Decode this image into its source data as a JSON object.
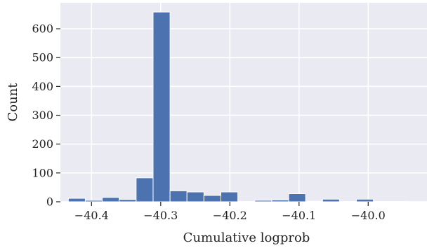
{
  "chart_data": {
    "type": "bar",
    "xlabel": "Cumulative logprob",
    "ylabel": "Count",
    "xlim": [
      -40.445,
      -39.915
    ],
    "ylim": [
      0,
      690
    ],
    "xticks": [
      -40.4,
      -40.3,
      -40.2,
      -40.1,
      -40.0
    ],
    "xtick_labels": [
      "−40.4",
      "−40.3",
      "−40.2",
      "−40.1",
      "−40.0"
    ],
    "yticks": [
      0,
      100,
      200,
      300,
      400,
      500,
      600
    ],
    "ytick_labels": [
      "0",
      "100",
      "200",
      "300",
      "400",
      "500",
      "600"
    ],
    "grid": true,
    "background": "#EAEAF2",
    "bar_color": "#4C72B0",
    "bin_width": 0.0245,
    "bins": [
      {
        "x0": -40.4335,
        "count": 12
      },
      {
        "x0": -40.409,
        "count": 5
      },
      {
        "x0": -40.3845,
        "count": 15
      },
      {
        "x0": -40.36,
        "count": 8
      },
      {
        "x0": -40.3355,
        "count": 83
      },
      {
        "x0": -40.311,
        "count": 658
      },
      {
        "x0": -40.2865,
        "count": 38
      },
      {
        "x0": -40.262,
        "count": 34
      },
      {
        "x0": -40.2375,
        "count": 22
      },
      {
        "x0": -40.213,
        "count": 34
      },
      {
        "x0": -40.1885,
        "count": 1
      },
      {
        "x0": -40.164,
        "count": 5
      },
      {
        "x0": -40.1395,
        "count": 6
      },
      {
        "x0": -40.115,
        "count": 28
      },
      {
        "x0": -40.0905,
        "count": 2
      },
      {
        "x0": -40.066,
        "count": 9
      },
      {
        "x0": -40.0415,
        "count": 1
      },
      {
        "x0": -40.017,
        "count": 9
      },
      {
        "x0": -39.9925,
        "count": 1
      },
      {
        "x0": -39.968,
        "count": 1
      }
    ]
  }
}
